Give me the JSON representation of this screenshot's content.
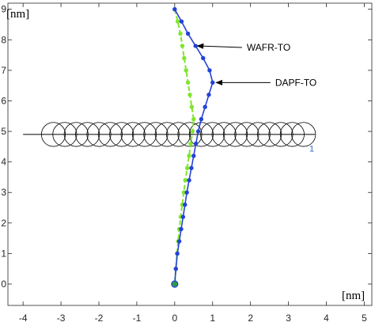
{
  "chart_data": {
    "type": "line",
    "title": "",
    "x_unit_label": "[nm]",
    "y_unit_label": "[nm]",
    "xlim": [
      -4.4,
      5.2
    ],
    "ylim": [
      -0.7,
      9.2
    ],
    "x_ticks": [
      "-4",
      "-3",
      "-2",
      "-1",
      "0",
      "1",
      "2",
      "3",
      "4",
      "5"
    ],
    "y_ticks": [
      "0",
      "1",
      "2",
      "3",
      "4",
      "5",
      "6",
      "7",
      "8",
      "9"
    ],
    "grid": false,
    "colors": {
      "wafr": "#7fe52b",
      "dapf": "#2442d8",
      "obstacle": "#000000",
      "obstacle_label": "#2a6cc8",
      "axes": "#262626"
    },
    "series": [
      {
        "name": "WAFR-TO",
        "style": "dashed-with-markers",
        "points": [
          [
            0,
            9.0
          ],
          [
            0.08,
            8.6
          ],
          [
            0.15,
            8.2
          ],
          [
            0.2,
            7.8
          ],
          [
            0.25,
            7.4
          ],
          [
            0.3,
            7.0
          ],
          [
            0.35,
            6.6
          ],
          [
            0.4,
            6.2
          ],
          [
            0.45,
            5.8
          ],
          [
            0.5,
            5.4
          ],
          [
            0.47,
            5.0
          ],
          [
            0.42,
            4.6
          ],
          [
            0.38,
            4.2
          ],
          [
            0.33,
            3.8
          ],
          [
            0.28,
            3.4
          ],
          [
            0.24,
            3.0
          ],
          [
            0.2,
            2.6
          ],
          [
            0.16,
            2.2
          ],
          [
            0.12,
            1.8
          ],
          [
            0.09,
            1.4
          ],
          [
            0.06,
            1.0
          ],
          [
            0.03,
            0.5
          ],
          [
            0,
            0
          ]
        ]
      },
      {
        "name": "DAPF-TO",
        "style": "solid-with-markers",
        "points": [
          [
            0,
            9.0
          ],
          [
            0.18,
            8.6
          ],
          [
            0.35,
            8.2
          ],
          [
            0.55,
            7.8
          ],
          [
            0.75,
            7.4
          ],
          [
            0.92,
            7.0
          ],
          [
            1.0,
            6.6
          ],
          [
            0.9,
            6.2
          ],
          [
            0.8,
            5.8
          ],
          [
            0.7,
            5.4
          ],
          [
            0.62,
            5.0
          ],
          [
            0.56,
            4.6
          ],
          [
            0.5,
            4.2
          ],
          [
            0.44,
            3.8
          ],
          [
            0.38,
            3.4
          ],
          [
            0.32,
            3.0
          ],
          [
            0.27,
            2.6
          ],
          [
            0.22,
            2.2
          ],
          [
            0.17,
            1.8
          ],
          [
            0.12,
            1.4
          ],
          [
            0.07,
            1.0
          ],
          [
            0.03,
            0.5
          ],
          [
            0,
            0
          ]
        ]
      }
    ],
    "obstacle_line": {
      "x": [
        -4.0,
        3.7
      ],
      "y": 4.9
    },
    "obstacle_circles": {
      "centers_x": [
        -3.2,
        -2.9,
        -2.6,
        -2.3,
        -2.0,
        -1.7,
        -1.4,
        -1.1,
        -0.8,
        -0.5,
        -0.2,
        0.1,
        0.4,
        0.7,
        1.0,
        1.3,
        1.6,
        1.9,
        2.2,
        2.5,
        2.8,
        3.1,
        3.4
      ],
      "y": 4.9,
      "radius": 0.35
    },
    "start_point": [
      0,
      0
    ],
    "annotations": [
      {
        "text": "WAFR-TO",
        "xy": [
          0.55,
          7.8
        ],
        "xytext": [
          1.9,
          7.75
        ]
      },
      {
        "text": "DAPF-TO",
        "xy": [
          1.05,
          6.6
        ],
        "xytext": [
          2.65,
          6.6
        ]
      },
      {
        "text": "1",
        "x": 3.55,
        "y": 4.45
      }
    ]
  }
}
